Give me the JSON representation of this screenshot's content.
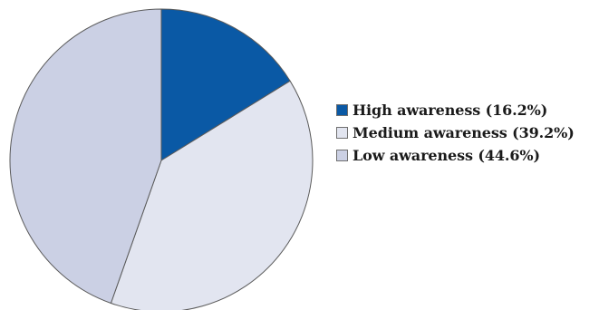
{
  "chart_data": {
    "type": "pie",
    "title": "",
    "legend_position": "right",
    "start_angle": "top",
    "direction": "clockwise",
    "slices": [
      {
        "label": "High awareness (16.2%)",
        "value": 16.2,
        "color": "#0a59a5"
      },
      {
        "label": "Medium awareness (39.2%)",
        "value": 39.2,
        "color": "#e2e5f0"
      },
      {
        "label": "Low awareness (44.6%)",
        "value": 44.6,
        "color": "#cbd0e4"
      }
    ],
    "edge_color": "#5a5a5a"
  }
}
